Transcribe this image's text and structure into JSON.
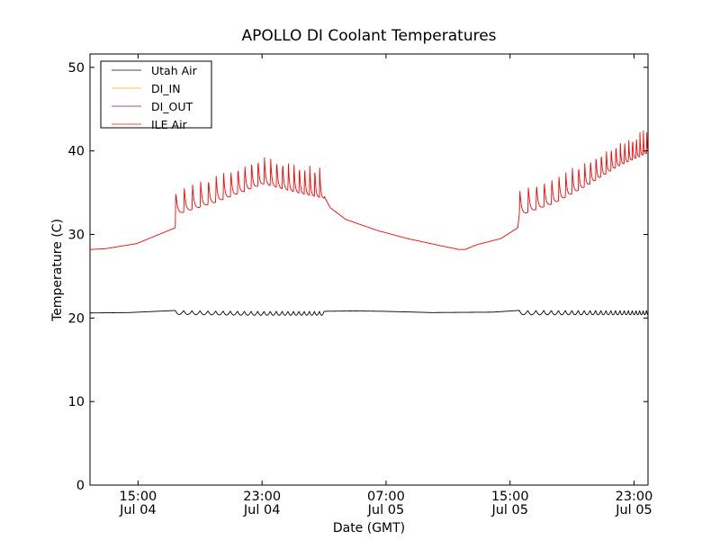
{
  "chart_data": {
    "type": "line",
    "title": "APOLLO DI Coolant Temperatures",
    "xlabel": "Date (GMT)",
    "ylabel": "Temperature (C)",
    "x_unit": "hours since Jul 04 11:54 GMT",
    "xlim": [
      0,
      36.0
    ],
    "ylim": [
      0,
      51.6
    ],
    "yticks": [
      0,
      10,
      20,
      30,
      40,
      50
    ],
    "xticks": [
      {
        "x": 3.1,
        "line1": "15:00",
        "line2": "Jul 04"
      },
      {
        "x": 11.1,
        "line1": "23:00",
        "line2": "Jul 04"
      },
      {
        "x": 19.1,
        "line1": "07:00",
        "line2": "Jul 05"
      },
      {
        "x": 27.1,
        "line1": "15:00",
        "line2": "Jul 05"
      },
      {
        "x": 35.1,
        "line1": "23:00",
        "line2": "Jul 05"
      }
    ],
    "grid": false,
    "legend_position": "top-left",
    "series": [
      {
        "name": "Utah Air",
        "color": "#000000",
        "baseline": [
          [
            0,
            20.6
          ],
          [
            2.5,
            20.65
          ],
          [
            5.5,
            20.9
          ],
          [
            10,
            20.8
          ],
          [
            15.1,
            20.8
          ],
          [
            17,
            20.85
          ],
          [
            19,
            20.8
          ],
          [
            22,
            20.65
          ],
          [
            26,
            20.7
          ],
          [
            27.6,
            20.9
          ],
          [
            36,
            20.9
          ]
        ],
        "cycles": [
          {
            "start": 5.5,
            "end": 15.1,
            "period_start": 0.55,
            "period_end": 0.3,
            "depth": 0.55
          },
          {
            "start": 27.7,
            "end": 36.0,
            "period_start": 0.55,
            "period_end": 0.2,
            "depth": 0.6
          }
        ]
      },
      {
        "name": "DI_IN",
        "color": "#ffb000",
        "baseline": [
          [
            0,
            0
          ],
          [
            36,
            0
          ]
        ],
        "cycles": []
      },
      {
        "name": "DI_OUT",
        "color": "#800080",
        "baseline": [
          [
            0,
            0
          ],
          [
            36,
            0
          ]
        ],
        "cycles": []
      },
      {
        "name": "ILE Air",
        "color": "#ff0000",
        "baseline": [
          [
            0,
            28.2
          ],
          [
            1,
            28.3
          ],
          [
            3,
            28.9
          ],
          [
            5.5,
            30.8
          ],
          [
            5.55,
            32.6
          ],
          [
            8,
            34.0
          ],
          [
            11.2,
            36.3
          ],
          [
            13.5,
            35.2
          ],
          [
            15.1,
            34.6
          ],
          [
            15.5,
            33.2
          ],
          [
            16.5,
            31.8
          ],
          [
            18.5,
            30.5
          ],
          [
            20.5,
            29.5
          ],
          [
            22.5,
            28.7
          ],
          [
            23.8,
            28.2
          ],
          [
            24.2,
            28.2
          ],
          [
            25,
            28.8
          ],
          [
            26.5,
            29.5
          ],
          [
            27.6,
            30.8
          ],
          [
            27.7,
            32.5
          ],
          [
            30,
            34.0
          ],
          [
            32,
            36.0
          ],
          [
            34,
            38.3
          ],
          [
            36,
            40.0
          ]
        ],
        "cycles": [
          {
            "start": 5.5,
            "end": 15.1,
            "period_start": 0.55,
            "period_end": 0.3,
            "peak_above_base_start": 3.0,
            "peak_above_base_end": 3.6
          },
          {
            "start": 27.7,
            "end": 36.0,
            "period_start": 0.55,
            "period_end": 0.2,
            "peak_above_base_start": 3.1,
            "peak_above_base_end": 3.0
          }
        ]
      }
    ]
  }
}
